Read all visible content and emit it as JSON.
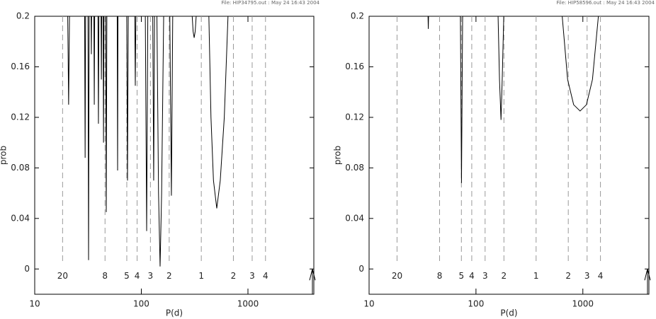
{
  "chart_data": [
    {
      "type": "line",
      "header": "File: HIP34795.out : May 24 16:43 2004",
      "xlabel": "P(d)",
      "ylabel": "prob",
      "xscale": "log",
      "xlim": [
        10,
        4150
      ],
      "ylim": [
        -0.02,
        0.2
      ],
      "xticks": [
        10,
        100,
        1000
      ],
      "yticks": [
        0,
        0.04,
        0.08,
        0.12,
        0.16,
        0.2
      ],
      "markers": [
        {
          "value": 18.26,
          "label": "20"
        },
        {
          "value": 45.66,
          "label": "8"
        },
        {
          "value": 73.05,
          "label": "5"
        },
        {
          "value": 91.31,
          "label": "4"
        },
        {
          "value": 121.75,
          "label": "3"
        },
        {
          "value": 182.63,
          "label": "2"
        },
        {
          "value": 365.25,
          "label": "1"
        },
        {
          "value": 730.5,
          "label": "2"
        },
        {
          "value": 1095.75,
          "label": "3"
        },
        {
          "value": 1461,
          "label": "4"
        }
      ],
      "series": [
        {
          "color": "#000000",
          "x": [
            20.4,
            20.8,
            21.2,
            null,
            29.4,
            29.7,
            30.0,
            null,
            31.6,
            32.0,
            32.4,
            null,
            33.8,
            34.0,
            34.2,
            null,
            35.9,
            36.2,
            36.5,
            null,
            39.2,
            39.6,
            40.0,
            null,
            41.9,
            42.2,
            42.5,
            null,
            43.8,
            44.2,
            44.6,
            null,
            46.3,
            46.9,
            47.5,
            null,
            59.4,
            59.9,
            60.4,
            null,
            73.0,
            74.2,
            75.4,
            null,
            86.8,
            87.8,
            88.8,
            null,
            109,
            112.2,
            115,
            null,
            128,
            130.6,
            133,
            null,
            140,
            145,
            150,
            155,
            162,
            null,
            185,
            191.5,
            197,
            null,
            300,
            306,
            313,
            320,
            327,
            null,
            430,
            450,
            475,
            510,
            550,
            600,
            650
          ],
          "values": [
            0.2,
            0.13,
            0.2,
            null,
            0.2,
            0.088,
            0.2,
            null,
            0.2,
            0.007,
            0.2,
            null,
            0.2,
            0.17,
            0.2,
            null,
            0.2,
            0.13,
            0.2,
            null,
            0.2,
            0.115,
            0.2,
            null,
            0.2,
            0.15,
            0.2,
            null,
            0.2,
            0.1,
            0.2,
            null,
            0.2,
            0.045,
            0.2,
            null,
            0.2,
            0.078,
            0.2,
            null,
            0.2,
            0.07,
            0.2,
            null,
            0.2,
            0.145,
            0.2,
            null,
            0.2,
            0.03,
            0.2,
            null,
            0.2,
            0.07,
            0.2,
            null,
            0.2,
            0.06,
            0.002,
            0.06,
            0.2,
            null,
            0.2,
            0.058,
            0.2,
            null,
            0.2,
            0.188,
            0.183,
            0.188,
            0.2,
            null,
            0.2,
            0.12,
            0.07,
            0.048,
            0.07,
            0.12,
            0.2
          ]
        }
      ]
    },
    {
      "type": "line",
      "header": "File: HIP58596.out : May 24 16:43 2004",
      "xlabel": "P(d)",
      "ylabel": "prob",
      "xscale": "log",
      "xlim": [
        10,
        4150
      ],
      "ylim": [
        -0.02,
        0.2
      ],
      "xticks": [
        10,
        100,
        1000
      ],
      "yticks": [
        0,
        0.04,
        0.08,
        0.12,
        0.16,
        0.2
      ],
      "markers": [
        {
          "value": 18.26,
          "label": "20"
        },
        {
          "value": 45.66,
          "label": "8"
        },
        {
          "value": 73.05,
          "label": "5"
        },
        {
          "value": 91.31,
          "label": "4"
        },
        {
          "value": 121.75,
          "label": "3"
        },
        {
          "value": 182.63,
          "label": "2"
        },
        {
          "value": 365.25,
          "label": "1"
        },
        {
          "value": 730.5,
          "label": "2"
        },
        {
          "value": 1095.75,
          "label": "3"
        },
        {
          "value": 1461,
          "label": "4"
        }
      ],
      "series": [
        {
          "color": "#000000",
          "x": [
            35.6,
            35.8,
            36.0,
            null,
            71.5,
            73.2,
            75,
            null,
            161,
            166,
            171.5,
            176,
            182,
            null,
            641,
            720,
            820,
            942,
            1080,
            1230,
            1397
          ],
          "values": [
            0.2,
            0.19,
            0.2,
            null,
            0.2,
            0.068,
            0.2,
            null,
            0.2,
            0.15,
            0.118,
            0.15,
            0.2,
            null,
            0.2,
            0.15,
            0.13,
            0.125,
            0.13,
            0.15,
            0.2
          ]
        }
      ]
    }
  ]
}
